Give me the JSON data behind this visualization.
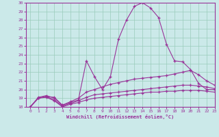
{
  "xlabel": "Windchill (Refroidissement éolien,°C)",
  "xlim": [
    0,
    23
  ],
  "ylim": [
    18,
    30
  ],
  "yticks": [
    18,
    19,
    20,
    21,
    22,
    23,
    24,
    25,
    26,
    27,
    28,
    29,
    30
  ],
  "xticks": [
    0,
    1,
    2,
    3,
    4,
    5,
    6,
    7,
    8,
    9,
    10,
    11,
    12,
    13,
    14,
    15,
    16,
    17,
    18,
    19,
    20,
    21,
    22,
    23
  ],
  "bg_color": "#cbe9e9",
  "line_color": "#993399",
  "grid_color": "#99ccbb",
  "line1_x": [
    0,
    1,
    2,
    3,
    4,
    5,
    6,
    7,
    8,
    9,
    10,
    11,
    12,
    13,
    14,
    15,
    16,
    17,
    18,
    19,
    20,
    21,
    22,
    23
  ],
  "line1_y": [
    18.0,
    19.0,
    19.2,
    19.1,
    18.2,
    18.5,
    18.8,
    23.3,
    21.5,
    20.0,
    21.5,
    25.8,
    28.0,
    29.6,
    30.0,
    29.4,
    28.3,
    25.2,
    23.3,
    23.2,
    22.3,
    20.7,
    20.0,
    20.0
  ],
  "line2_x": [
    0,
    1,
    2,
    3,
    4,
    5,
    6,
    7,
    8,
    9,
    10,
    11,
    12,
    13,
    14,
    15,
    16,
    17,
    18,
    19,
    20,
    21,
    22,
    23
  ],
  "line2_y": [
    18.0,
    19.1,
    19.3,
    19.0,
    18.2,
    18.6,
    19.0,
    19.7,
    20.0,
    20.3,
    20.6,
    20.8,
    21.0,
    21.2,
    21.3,
    21.4,
    21.5,
    21.6,
    21.8,
    22.0,
    22.2,
    21.7,
    21.0,
    20.5
  ],
  "line3_x": [
    0,
    1,
    2,
    3,
    4,
    5,
    6,
    7,
    8,
    9,
    10,
    11,
    12,
    13,
    14,
    15,
    16,
    17,
    18,
    19,
    20,
    21,
    22,
    23
  ],
  "line3_y": [
    18.0,
    19.0,
    19.2,
    18.8,
    18.1,
    18.4,
    18.7,
    19.1,
    19.4,
    19.5,
    19.6,
    19.7,
    19.8,
    19.9,
    20.0,
    20.1,
    20.2,
    20.3,
    20.4,
    20.5,
    20.5,
    20.4,
    20.3,
    20.1
  ],
  "line4_x": [
    0,
    1,
    2,
    3,
    4,
    5,
    6,
    7,
    8,
    9,
    10,
    11,
    12,
    13,
    14,
    15,
    16,
    17,
    18,
    19,
    20,
    21,
    22,
    23
  ],
  "line4_y": [
    18.0,
    19.0,
    19.1,
    18.7,
    18.0,
    18.3,
    18.5,
    18.8,
    19.0,
    19.1,
    19.2,
    19.3,
    19.4,
    19.5,
    19.6,
    19.7,
    19.7,
    19.8,
    19.8,
    19.9,
    19.9,
    19.9,
    19.8,
    19.7
  ]
}
